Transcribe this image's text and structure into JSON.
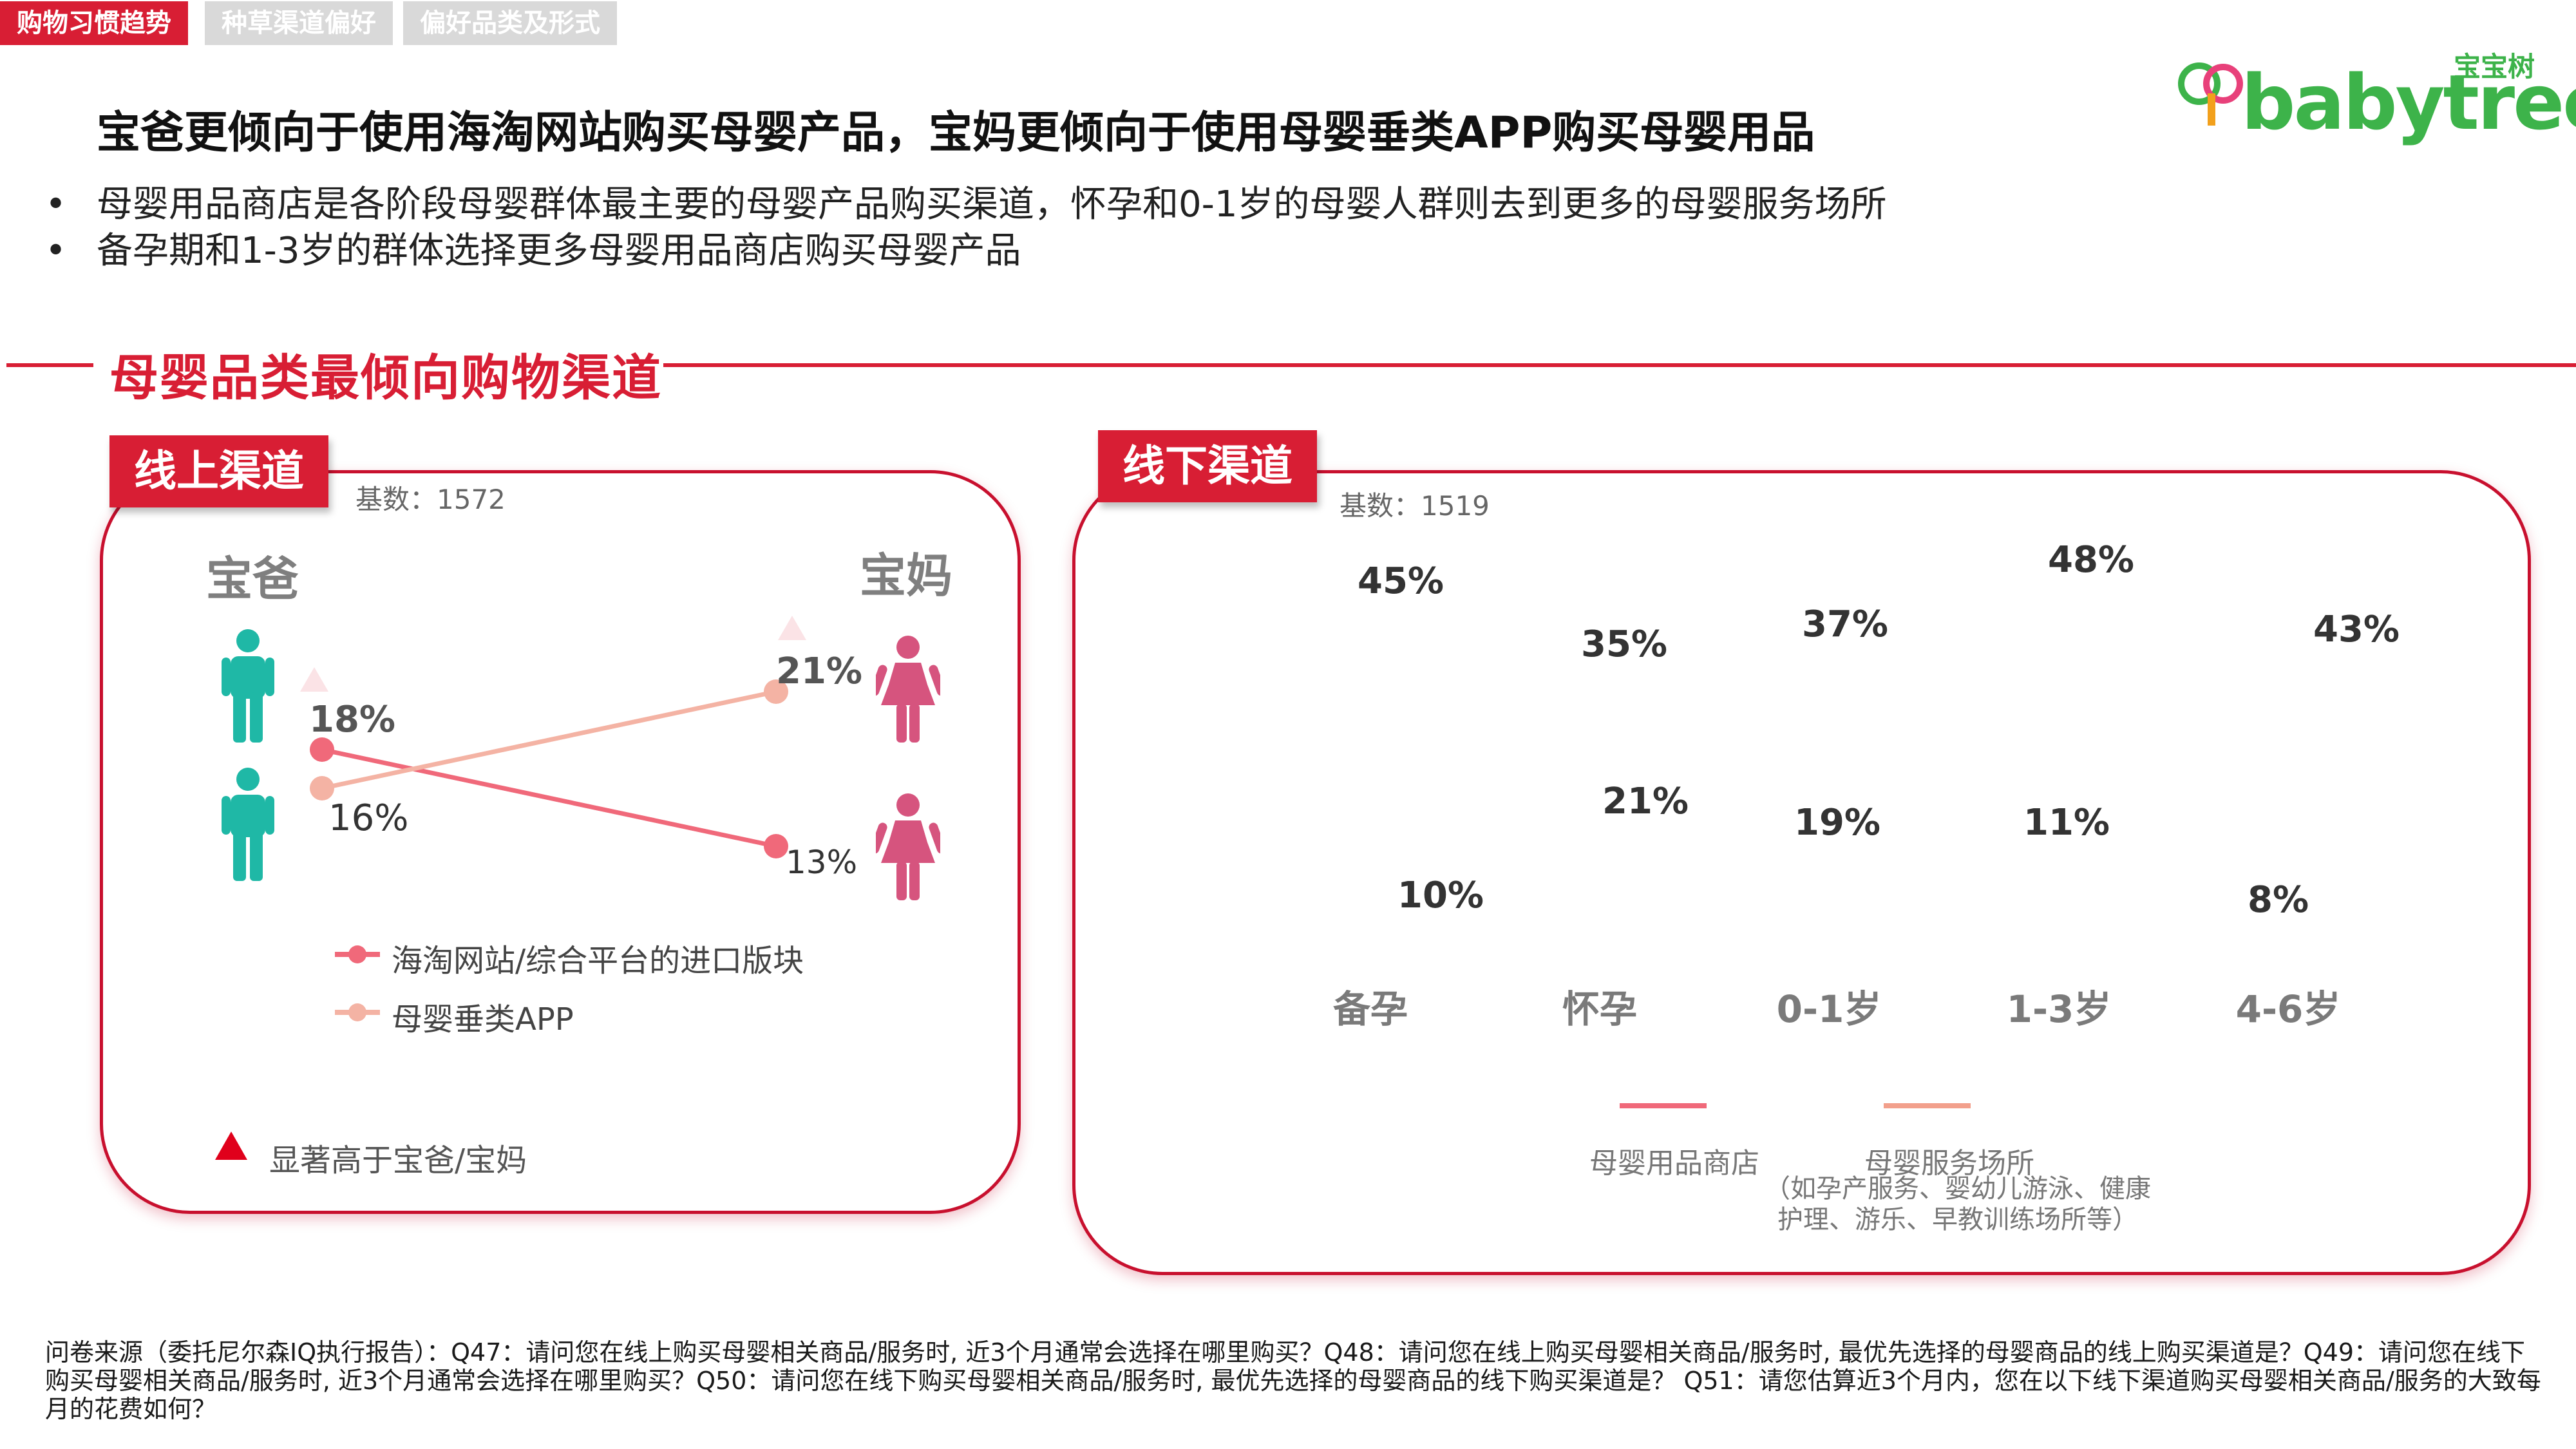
{
  "tabs": [
    {
      "label": "购物习惯趋势",
      "active": true
    },
    {
      "label": "种草渠道偏好",
      "active": false
    },
    {
      "label": "偏好品类及形式",
      "active": false
    }
  ],
  "logo": {
    "sub": "宝宝树",
    "main": "babytree"
  },
  "title": "宝爸更倾向于使用海淘网站购买母婴产品，宝妈更倾向于使用母婴垂类APP购买母婴用品",
  "bullets": [
    "母婴用品商店是各阶段母婴群体最主要的母婴产品购买渠道，怀孕和0-1岁的母婴人群则去到更多的母婴服务场所",
    "备孕期和1-3岁的群体选择更多母婴用品商店购买母婴产品"
  ],
  "bullet_mark": "•",
  "section_title": "母婴品类最倾向购物渠道",
  "online": {
    "tag": "线上渠道",
    "base": "基数：1572",
    "left_group": "宝爸",
    "right_group": "宝妈",
    "legend_note": "显著高于宝爸/宝妈",
    "value_labels": {
      "s1_dad": "18%",
      "s1_mom": "13%",
      "s2_dad": "16%",
      "s2_mom": "21%"
    }
  },
  "offline": {
    "tag": "线下渠道",
    "base": "基数：1519",
    "note": "（如孕产服务、婴幼儿游泳、健康护理、游乐、早教训练场所等）",
    "value_labels": {
      "s1": [
        "45%",
        "35%",
        "37%",
        "48%",
        "43%"
      ],
      "s2": [
        "10%",
        "21%",
        "19%",
        "11%",
        "8%"
      ]
    }
  },
  "footer": "问卷来源（委托尼尔森IQ执行报告）：Q47：请问您在线上购买母婴相关商品/服务时, 近3个月通常会选择在哪里购买？Q48：请问您在线上购买母婴相关商品/服务时, 最优先选择的母婴商品的线上购买渠道是？Q49：请问您在线下购买母婴相关商品/服务时, 近3个月通常会选择在哪里购买？Q50：请问您在线下购买母婴相关商品/服务时, 最优先选择的母婴商品的线下购买渠道是？ Q51：请您估算近3个月内，您在以下线下渠道购买母婴相关商品/服务的大致每月的花费如何？",
  "colors": {
    "accent": "#d81e34",
    "series1": "#f0697a",
    "series2": "#f2a08c",
    "series2_light": "#f4b3a4",
    "dad": "#1fb8a6",
    "mom": "#d6547e",
    "logo": "#3db34a"
  },
  "chart_data": [
    {
      "type": "line",
      "title": "线上渠道",
      "categories": [
        "宝爸",
        "宝妈"
      ],
      "series": [
        {
          "name": "海淘网站/综合平台的进口版块",
          "values": [
            18,
            13
          ]
        },
        {
          "name": "母婴垂类APP",
          "values": [
            16,
            21
          ]
        }
      ],
      "unit": "%",
      "significance": {
        "marker": "triangle",
        "meaning": "显著高于宝爸/宝妈",
        "points": [
          {
            "series": 0,
            "category": 0
          },
          {
            "series": 1,
            "category": 1
          }
        ]
      },
      "legend": "bottom-left"
    },
    {
      "type": "line",
      "title": "线下渠道",
      "categories": [
        "备孕",
        "怀孕",
        "0-1岁",
        "1-3岁",
        "4-6岁"
      ],
      "series": [
        {
          "name": "母婴用品商店",
          "values": [
            45,
            35,
            37,
            48,
            43
          ]
        },
        {
          "name": "母婴服务场所",
          "values": [
            10,
            21,
            19,
            11,
            8
          ]
        }
      ],
      "unit": "%",
      "significance": {
        "marker": "triangle",
        "points": [
          {
            "series": 0,
            "category": 3
          },
          {
            "series": 1,
            "category": 1
          },
          {
            "series": 1,
            "category": 2
          }
        ]
      },
      "legend": "bottom"
    }
  ]
}
